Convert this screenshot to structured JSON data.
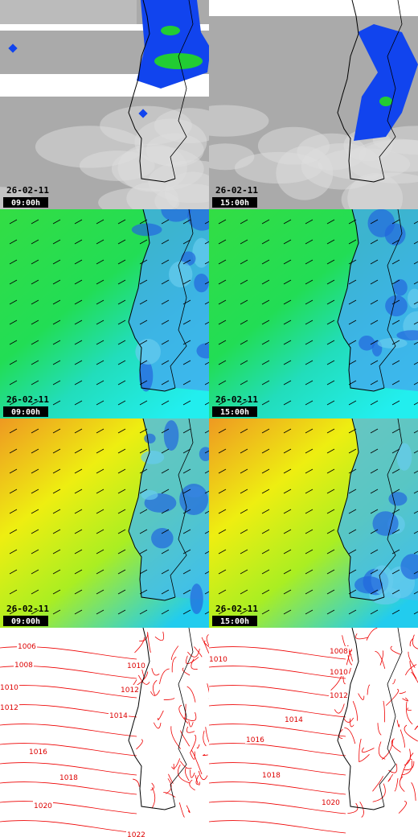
{
  "panels": [
    {
      "date": "26-02-11",
      "time": "09:00h"
    },
    {
      "date": "26-02-11",
      "time": "15:00h"
    },
    {
      "date": "26-02-11",
      "time": "09:00h"
    },
    {
      "date": "26-02-11",
      "time": "15:00h"
    },
    {
      "date": "26-02-11",
      "time": "09:00h"
    },
    {
      "date": "26-02-11",
      "time": "15:00h"
    },
    {
      "isobars": [
        "1006",
        "1008",
        "1010",
        "1012",
        "1014",
        "1016",
        "1018",
        "1020",
        "1022",
        "1010",
        "1012"
      ]
    },
    {
      "isobars": [
        "1008",
        "1010",
        "1012",
        "1014",
        "1016",
        "1018",
        "1020",
        "1010"
      ]
    }
  ]
}
